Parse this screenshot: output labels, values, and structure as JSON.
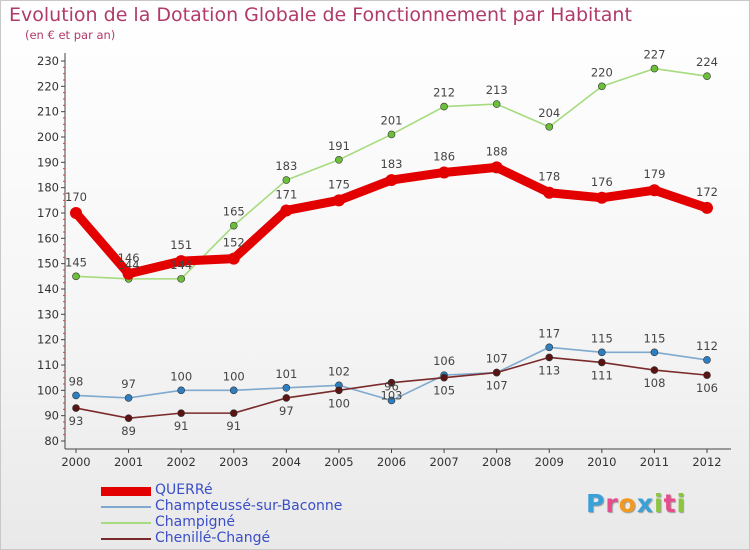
{
  "title": "Evolution de la Dotation Globale de Fonctionnement par Habitant",
  "subtitle": "(en € et par an)",
  "brand": {
    "text": "Proxiti",
    "letters": [
      "P",
      "r",
      "o",
      "x",
      "i",
      "t",
      "i"
    ],
    "letter_colors": [
      "#3aa0d8",
      "#e74c8c",
      "#f39a1e",
      "#3aa0d8",
      "#8cc63f",
      "#e74c8c",
      "#8cc63f"
    ]
  },
  "chart_data": {
    "type": "line",
    "title": "Evolution de la Dotation Globale de Fonctionnement par Habitant",
    "subtitle": "(en € et par an)",
    "xlabel": "",
    "ylabel": "",
    "categories": [
      "2000",
      "2001",
      "2002",
      "2003",
      "2004",
      "2005",
      "2006",
      "2007",
      "2008",
      "2009",
      "2010",
      "2011",
      "2012"
    ],
    "ylim": [
      80,
      230
    ],
    "ytick_step": 10,
    "yticks": [
      80,
      90,
      100,
      110,
      120,
      130,
      140,
      150,
      160,
      170,
      180,
      190,
      200,
      210,
      220,
      230
    ],
    "grid": false,
    "legend_position": "bottom-left",
    "series": [
      {
        "name": "QUERRé",
        "color": "#e30000",
        "marker_color": "#e30000",
        "values": [
          170,
          146,
          151,
          152,
          171,
          175,
          183,
          186,
          188,
          178,
          176,
          179,
          172
        ],
        "labels": [
          "170",
          "146",
          "151",
          "152",
          "171",
          "175",
          "183",
          "186",
          "188",
          "178",
          "176",
          "179",
          "172"
        ]
      },
      {
        "name": "Champteussé-sur-Baconne",
        "color": "#7fa9cf",
        "marker_color": "#2e7fc2",
        "values": [
          98,
          97,
          100,
          100,
          101,
          102,
          96,
          106,
          107,
          117,
          115,
          115,
          112
        ],
        "labels": [
          "98",
          "97",
          "100",
          "100",
          "101",
          "102",
          "96",
          "106",
          "107",
          "117",
          "115",
          "115",
          "112"
        ]
      },
      {
        "name": "Champigné",
        "color": "#a6db7e",
        "marker_color": "#6cbf3a",
        "values": [
          145,
          144,
          144,
          165,
          183,
          191,
          201,
          212,
          213,
          204,
          220,
          227,
          224
        ],
        "labels": [
          "145",
          "144",
          "144",
          "165",
          "183",
          "191",
          "201",
          "212",
          "213",
          "204",
          "220",
          "227",
          "224"
        ]
      },
      {
        "name": "Chenillé-Changé",
        "color": "#7a2a2a",
        "marker_color": "#5a1414",
        "values": [
          93,
          89,
          91,
          91,
          97,
          100,
          103,
          105,
          107,
          113,
          111,
          108,
          106
        ],
        "labels": [
          "93",
          "89",
          "91",
          "91",
          "97",
          "100",
          "103",
          "105",
          "107",
          "113",
          "111",
          "108",
          "106"
        ]
      }
    ]
  }
}
